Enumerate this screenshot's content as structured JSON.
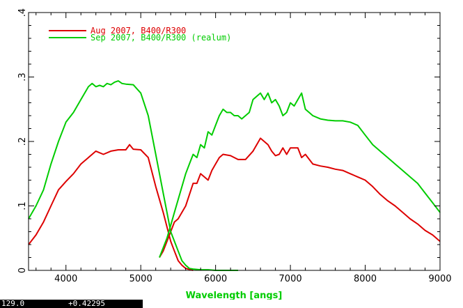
{
  "chart_data": {
    "type": "line",
    "xlabel": "Wavelength [angs]",
    "ylabel": "",
    "xlim": [
      3500,
      9000
    ],
    "ylim": [
      0,
      0.4
    ],
    "x_ticks": [
      "4000",
      "5000",
      "6000",
      "7000",
      "8000",
      "9000"
    ],
    "y_ticks": [
      "0",
      ".1",
      ".2",
      ".3",
      ".4"
    ],
    "legend_position": "top-left",
    "series": [
      {
        "name": "Aug 2007, B400/R300",
        "color": "#dd0000",
        "segments": [
          {
            "x": [
              3500,
              3600,
              3700,
              3800,
              3900,
              4000,
              4100,
              4200,
              4300,
              4400,
              4500,
              4600,
              4700,
              4800,
              4850,
              4900,
              5000,
              5100,
              5200,
              5300,
              5400,
              5450,
              5500,
              5550,
              5600,
              5700
            ],
            "y": [
              0.04,
              0.055,
              0.075,
              0.1,
              0.125,
              0.138,
              0.15,
              0.165,
              0.175,
              0.185,
              0.18,
              0.185,
              0.187,
              0.187,
              0.195,
              0.188,
              0.187,
              0.175,
              0.13,
              0.09,
              0.045,
              0.03,
              0.015,
              0.008,
              0.003,
              0.0
            ]
          },
          {
            "x": [
              5250,
              5300,
              5350,
              5400,
              5450,
              5500,
              5550,
              5600,
              5700,
              5750,
              5800,
              5850,
              5900,
              5950,
              6000,
              6050,
              6100,
              6200,
              6300,
              6400,
              6500,
              6600,
              6650,
              6700,
              6750,
              6800,
              6850,
              6900,
              6950,
              7000,
              7050,
              7100,
              7150,
              7200,
              7300,
              7400,
              7500,
              7600,
              7700,
              7800,
              7900,
              8000,
              8100,
              8200,
              8300,
              8400,
              8500,
              8600,
              8700,
              8800,
              8900,
              9000
            ],
            "y": [
              0.02,
              0.03,
              0.045,
              0.06,
              0.075,
              0.08,
              0.09,
              0.1,
              0.135,
              0.135,
              0.15,
              0.145,
              0.14,
              0.155,
              0.165,
              0.175,
              0.18,
              0.178,
              0.172,
              0.172,
              0.185,
              0.205,
              0.2,
              0.195,
              0.185,
              0.178,
              0.18,
              0.19,
              0.18,
              0.19,
              0.19,
              0.19,
              0.175,
              0.18,
              0.165,
              0.162,
              0.16,
              0.157,
              0.155,
              0.15,
              0.145,
              0.14,
              0.13,
              0.118,
              0.108,
              0.1,
              0.09,
              0.08,
              0.072,
              0.062,
              0.055,
              0.045
            ]
          }
        ]
      },
      {
        "name": "Sep 2007, B400/R300 (realum)",
        "color": "#00cc00",
        "segments": [
          {
            "x": [
              3500,
              3600,
              3700,
              3800,
              3900,
              4000,
              4100,
              4200,
              4300,
              4350,
              4400,
              4450,
              4500,
              4550,
              4600,
              4650,
              4700,
              4750,
              4800,
              4900,
              5000,
              5100,
              5200,
              5300,
              5400,
              5500,
              5550,
              5600,
              5650,
              5700,
              5800,
              5900,
              6000,
              6100,
              6200,
              6300
            ],
            "y": [
              0.08,
              0.1,
              0.125,
              0.165,
              0.2,
              0.23,
              0.245,
              0.265,
              0.285,
              0.29,
              0.285,
              0.287,
              0.285,
              0.29,
              0.288,
              0.292,
              0.294,
              0.29,
              0.289,
              0.288,
              0.275,
              0.24,
              0.18,
              0.12,
              0.06,
              0.03,
              0.015,
              0.008,
              0.003,
              0.002,
              0.001,
              0.001,
              0.0,
              0.0,
              0.0,
              0.0
            ]
          },
          {
            "x": [
              5250,
              5300,
              5350,
              5400,
              5450,
              5500,
              5550,
              5600,
              5650,
              5700,
              5750,
              5800,
              5850,
              5900,
              5950,
              6000,
              6050,
              6100,
              6150,
              6200,
              6250,
              6300,
              6350,
              6400,
              6450,
              6500,
              6550,
              6600,
              6650,
              6700,
              6750,
              6800,
              6850,
              6900,
              6950,
              7000,
              7050,
              7100,
              7150,
              7200,
              7250,
              7300,
              7400,
              7500,
              7600,
              7700,
              7800,
              7900,
              8000,
              8100,
              8200,
              8300,
              8400,
              8500,
              8600,
              8700,
              8800,
              8900,
              9000
            ],
            "y": [
              0.02,
              0.035,
              0.05,
              0.07,
              0.09,
              0.11,
              0.13,
              0.15,
              0.165,
              0.18,
              0.175,
              0.195,
              0.19,
              0.215,
              0.21,
              0.225,
              0.24,
              0.25,
              0.245,
              0.245,
              0.24,
              0.24,
              0.235,
              0.24,
              0.245,
              0.265,
              0.27,
              0.275,
              0.265,
              0.275,
              0.26,
              0.265,
              0.255,
              0.24,
              0.245,
              0.26,
              0.255,
              0.265,
              0.275,
              0.25,
              0.245,
              0.24,
              0.235,
              0.233,
              0.232,
              0.232,
              0.23,
              0.225,
              0.21,
              0.195,
              0.185,
              0.175,
              0.165,
              0.155,
              0.145,
              0.135,
              0.12,
              0.105,
              0.09
            ]
          }
        ]
      }
    ]
  },
  "readout": {
    "x_value": "129.0",
    "y_value": "+0.42295"
  }
}
